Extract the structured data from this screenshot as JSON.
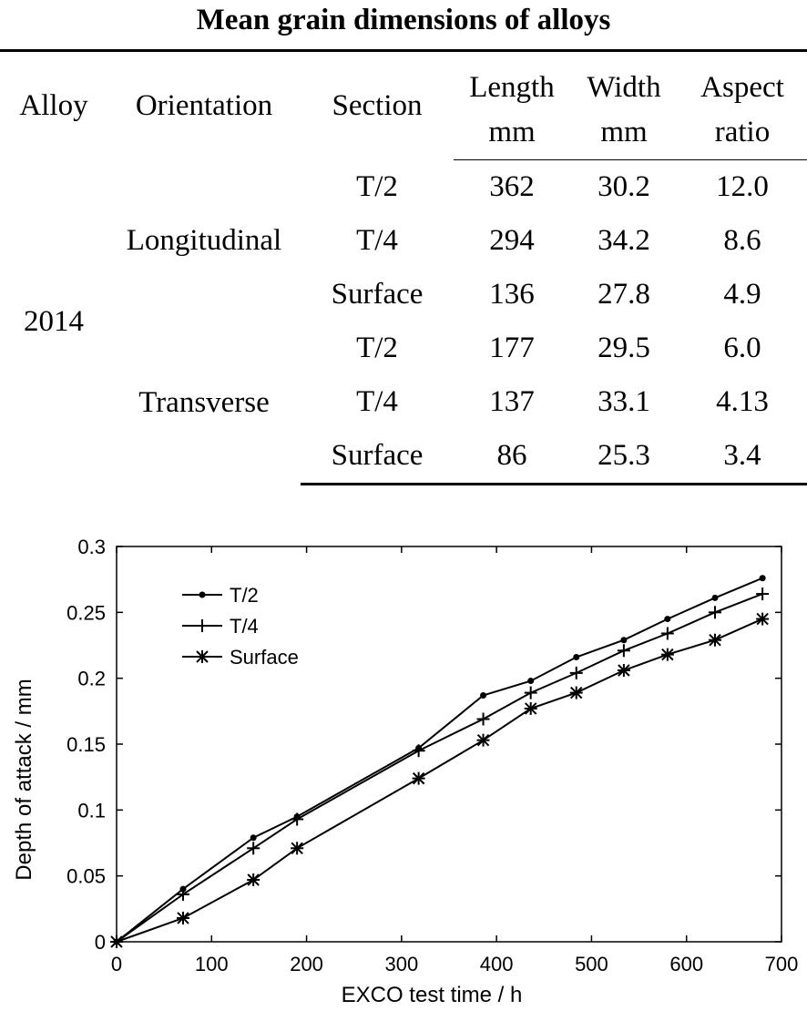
{
  "table": {
    "title": "Mean grain dimensions of alloys",
    "headers": {
      "alloy": "Alloy",
      "orientation": "Orientation",
      "section": "Section",
      "length_top": "Length",
      "length_unit": "mm",
      "width_top": "Width",
      "width_unit": "mm",
      "aspect_top": "Aspect",
      "aspect_bottom": "ratio"
    },
    "alloy": "2014",
    "groups": [
      {
        "orientation": "Longitudinal",
        "rows": [
          {
            "section": "T/2",
            "length": "362",
            "width": "30.2",
            "aspect": "12.0"
          },
          {
            "section": "T/4",
            "length": "294",
            "width": "34.2",
            "aspect": "8.6"
          },
          {
            "section": "Surface",
            "length": "136",
            "width": "27.8",
            "aspect": "4.9"
          }
        ]
      },
      {
        "orientation": "Transverse",
        "rows": [
          {
            "section": "T/2",
            "length": "177",
            "width": "29.5",
            "aspect": "6.0"
          },
          {
            "section": "T/4",
            "length": "137",
            "width": "33.1",
            "aspect": "4.13"
          },
          {
            "section": "Surface",
            "length": "86",
            "width": "25.3",
            "aspect": "3.4"
          }
        ]
      }
    ]
  },
  "chart_data": {
    "type": "line",
    "xlabel": "EXCO test time / h",
    "ylabel": "Depth of attack / mm",
    "xlim": [
      0,
      700
    ],
    "ylim": [
      0,
      0.3
    ],
    "xticks": [
      "0",
      "100",
      "200",
      "300",
      "400",
      "500",
      "600",
      "700"
    ],
    "yticks": [
      "0",
      "0.05",
      "0.1",
      "0.15",
      "0.2",
      "0.25",
      "0.3"
    ],
    "grid": false,
    "legend_position": "top-left",
    "series": [
      {
        "name": "T/2",
        "marker": "dot",
        "points": [
          [
            0,
            0
          ],
          [
            70,
            0.04
          ],
          [
            144,
            0.079
          ],
          [
            190,
            0.095
          ],
          [
            318,
            0.147
          ],
          [
            386,
            0.187
          ],
          [
            436,
            0.198
          ],
          [
            484,
            0.216
          ],
          [
            534,
            0.229
          ],
          [
            580,
            0.245
          ],
          [
            630,
            0.261
          ],
          [
            680,
            0.276
          ]
        ]
      },
      {
        "name": "T/4",
        "marker": "plus",
        "points": [
          [
            0,
            0
          ],
          [
            70,
            0.036
          ],
          [
            144,
            0.071
          ],
          [
            190,
            0.093
          ],
          [
            318,
            0.145
          ],
          [
            386,
            0.169
          ],
          [
            436,
            0.189
          ],
          [
            484,
            0.204
          ],
          [
            534,
            0.221
          ],
          [
            580,
            0.234
          ],
          [
            630,
            0.25
          ],
          [
            680,
            0.264
          ]
        ]
      },
      {
        "name": "Surface",
        "marker": "star",
        "points": [
          [
            0,
            0
          ],
          [
            70,
            0.018
          ],
          [
            144,
            0.047
          ],
          [
            190,
            0.071
          ],
          [
            318,
            0.124
          ],
          [
            386,
            0.153
          ],
          [
            436,
            0.177
          ],
          [
            484,
            0.189
          ],
          [
            534,
            0.206
          ],
          [
            580,
            0.218
          ],
          [
            630,
            0.229
          ],
          [
            680,
            0.245
          ]
        ]
      }
    ]
  }
}
